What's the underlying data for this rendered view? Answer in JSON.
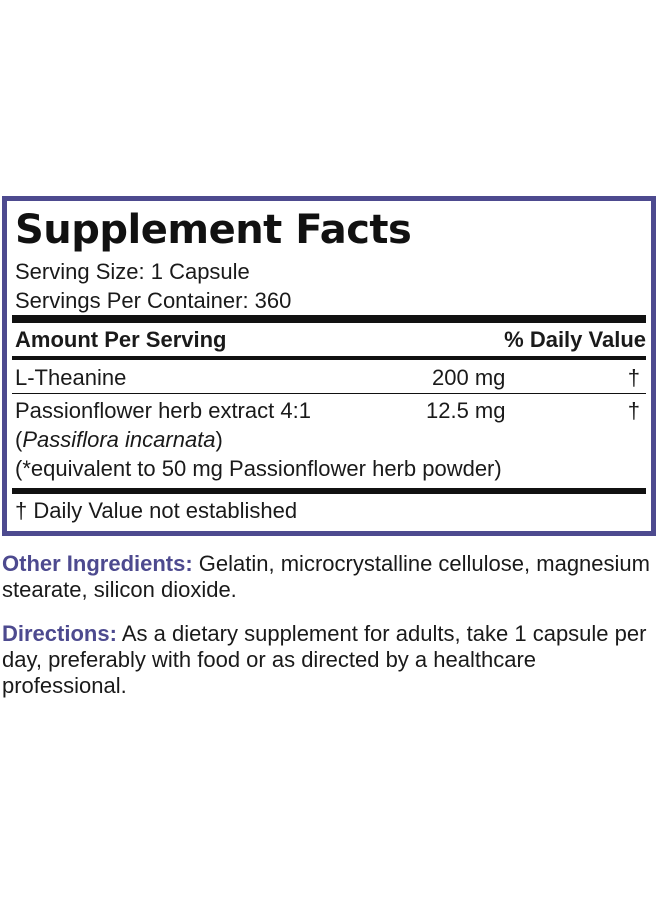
{
  "facts": {
    "title": "Supplement Facts",
    "serving_size": "Serving Size: 1 Capsule",
    "servings_per_container": "Servings Per Container: 360",
    "header_amount": "Amount Per Serving",
    "header_dv": "% Daily Value",
    "rows": [
      {
        "name": "L-Theanine",
        "amount": "200 mg",
        "dv": "†"
      },
      {
        "name": "Passionflower herb extract 4:1",
        "amount": "12.5 mg",
        "dv": "†",
        "latin_open": "(",
        "latin": "Passiflora incarnata",
        "latin_close": ")",
        "note": "(*equivalent to 50 mg Passionflower herb powder)"
      }
    ],
    "footnote": "† Daily Value not established"
  },
  "other_ingredients": {
    "label": "Other Ingredients:",
    "text": " Gelatin, microcrystalline cellulose, magnesium stearate, silicon dioxide."
  },
  "directions": {
    "label": "Directions:",
    "text": " As a dietary supplement for adults, take 1 capsule per day, preferably with food or as directed by a healthcare professional."
  },
  "colors": {
    "accent": "#4d4a8f",
    "text": "#1a1a1a"
  }
}
